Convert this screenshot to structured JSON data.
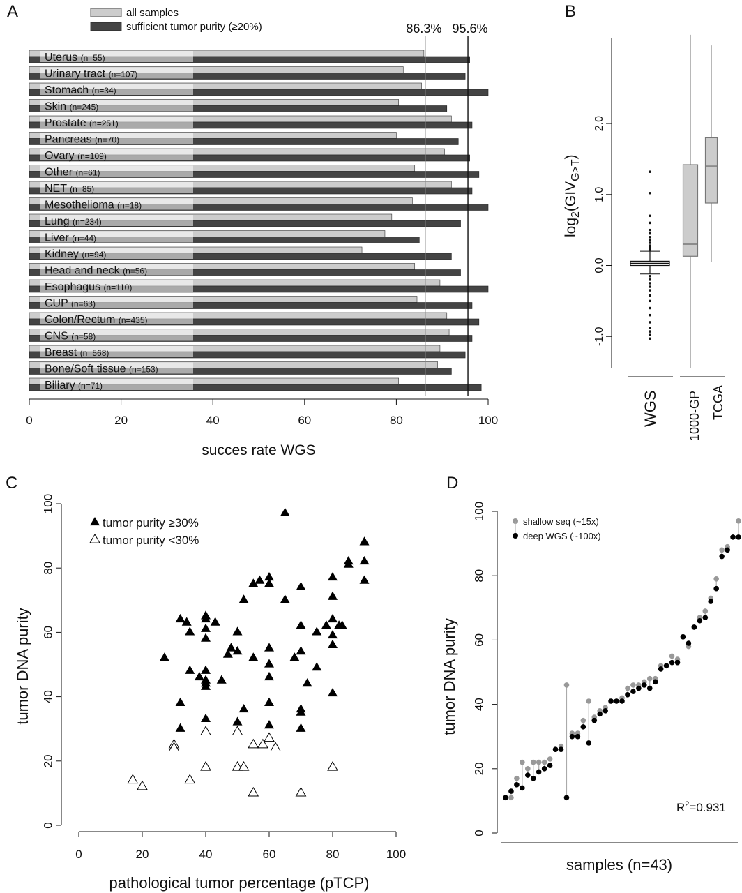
{
  "colors": {
    "all": "#cccccc",
    "sufficient": "#444444",
    "box": "#cccccc",
    "shallow": "#999999",
    "deep": "#000000"
  },
  "panels": {
    "a": "A",
    "b": "B",
    "c": "C",
    "d": "D"
  },
  "chart_data": [
    {
      "type": "bar",
      "panel": "A",
      "categories": [
        {
          "name": "Uterus",
          "n": "(n=55)"
        },
        {
          "name": "Urinary tract",
          "n": "(n=107)"
        },
        {
          "name": "Stomach",
          "n": "(n=34)"
        },
        {
          "name": "Skin",
          "n": "(n=245)"
        },
        {
          "name": "Prostate",
          "n": "(n=251)"
        },
        {
          "name": "Pancreas",
          "n": "(n=70)"
        },
        {
          "name": "Ovary",
          "n": "(n=109)"
        },
        {
          "name": "Other",
          "n": "(n=61)"
        },
        {
          "name": "NET",
          "n": "(n=85)"
        },
        {
          "name": "Mesothelioma",
          "n": "(n=18)"
        },
        {
          "name": "Lung",
          "n": "(n=234)"
        },
        {
          "name": "Liver",
          "n": "(n=44)"
        },
        {
          "name": "Kidney",
          "n": "(n=94)"
        },
        {
          "name": "Head and neck",
          "n": "(n=56)"
        },
        {
          "name": "Esophagus",
          "n": "(n=110)"
        },
        {
          "name": "CUP",
          "n": "(n=63)"
        },
        {
          "name": "Colon/Rectum",
          "n": "(n=435)"
        },
        {
          "name": "CNS",
          "n": "(n=58)"
        },
        {
          "name": "Breast",
          "n": "(n=568)"
        },
        {
          "name": "Bone/Soft tissue",
          "n": "(n=153)"
        },
        {
          "name": "Biliary",
          "n": "(n=71)"
        }
      ],
      "series": [
        {
          "name": "all samples",
          "values": [
            86,
            81.5,
            85.5,
            80.5,
            92,
            80,
            90.5,
            84,
            92,
            83.5,
            79,
            77.5,
            72.5,
            84,
            89.5,
            84.5,
            91,
            91.5,
            89.5,
            89,
            80.5
          ]
        },
        {
          "name": "sufficient tumor purity (≥20%)",
          "values": [
            96,
            95,
            100,
            91,
            96.5,
            93.5,
            96,
            98,
            96.5,
            100,
            94,
            85,
            92,
            94,
            100,
            96.5,
            98,
            96.5,
            95,
            92,
            98.5
          ]
        }
      ],
      "reference_lines": [
        {
          "value": 86.3,
          "label": "86.3%"
        },
        {
          "value": 95.6,
          "label": "95.6%"
        }
      ],
      "xlabel": "succes rate WGS",
      "xlim": [
        0,
        100
      ],
      "xticks": [
        "0",
        "20",
        "40",
        "60",
        "80",
        "100"
      ],
      "legend_position": "top-left"
    },
    {
      "type": "box",
      "panel": "B",
      "ylabel_main": "log",
      "ylabel_sub1": "2",
      "ylabel_mid": "(GIV",
      "ylabel_sub2": "G>T",
      "ylabel_end": ")",
      "ylim": [
        -1.45,
        3.2
      ],
      "yticks": [
        "-1.0",
        "0.0",
        "1.0",
        "2.0"
      ],
      "groups": [
        {
          "name": "WGS",
          "q1": 0.0,
          "median": 0.03,
          "q3": 0.06,
          "whisker_low": -0.12,
          "whisker_high": 0.2,
          "outliers": [
            1.32,
            1.02,
            0.7,
            0.6,
            0.5,
            0.45,
            0.4,
            0.36,
            0.32,
            0.28,
            0.25,
            0.22,
            -0.15,
            -0.2,
            -0.25,
            -0.3,
            -0.35,
            -0.42,
            -0.5,
            -0.6,
            -0.7,
            -0.8,
            -0.88,
            -0.93,
            -0.98,
            -1.03
          ]
        },
        {
          "name": "1000-GP",
          "q1": 0.13,
          "median": 0.3,
          "q3": 1.42,
          "whisker_low": -1.45,
          "whisker_high": 3.25,
          "outliers": []
        },
        {
          "name": "TCGA",
          "q1": 0.88,
          "median": 1.4,
          "q3": 1.8,
          "whisker_low": 0.05,
          "whisker_high": 3.1,
          "outliers": []
        }
      ]
    },
    {
      "type": "scatter",
      "panel": "C",
      "xlabel": "pathological tumor percentage (pTCP)",
      "ylabel": "tumor DNA purity",
      "xlim": [
        0,
        100
      ],
      "ylim": [
        0,
        100
      ],
      "xticks": [
        "0",
        "20",
        "40",
        "60",
        "80",
        "100"
      ],
      "yticks": [
        "0",
        "20",
        "40",
        "60",
        "80",
        "100"
      ],
      "legend_position": "top-left",
      "series": [
        {
          "name": "tumor purity ≥30%",
          "points": [
            [
              27,
              52
            ],
            [
              32,
              64
            ],
            [
              32,
              38
            ],
            [
              32,
              30
            ],
            [
              34,
              63
            ],
            [
              35,
              60
            ],
            [
              35,
              48
            ],
            [
              38,
              46
            ],
            [
              40,
              65
            ],
            [
              40,
              64
            ],
            [
              40,
              61
            ],
            [
              40,
              58
            ],
            [
              40,
              48
            ],
            [
              40,
              45
            ],
            [
              40,
              44
            ],
            [
              40,
              43
            ],
            [
              40,
              33
            ],
            [
              43,
              63
            ],
            [
              45,
              45
            ],
            [
              47,
              53
            ],
            [
              48,
              55
            ],
            [
              50,
              60
            ],
            [
              50,
              54
            ],
            [
              50,
              32
            ],
            [
              52,
              36
            ],
            [
              52,
              70
            ],
            [
              55,
              75
            ],
            [
              55,
              52
            ],
            [
              57,
              76
            ],
            [
              60,
              77
            ],
            [
              60,
              75
            ],
            [
              60,
              55
            ],
            [
              60,
              50
            ],
            [
              60,
              46
            ],
            [
              60,
              38
            ],
            [
              60,
              31
            ],
            [
              65,
              97
            ],
            [
              65,
              70
            ],
            [
              68,
              52
            ],
            [
              70,
              74
            ],
            [
              70,
              62
            ],
            [
              70,
              54
            ],
            [
              70,
              36
            ],
            [
              70,
              35
            ],
            [
              70,
              30
            ],
            [
              72,
              44
            ],
            [
              75,
              60
            ],
            [
              75,
              49
            ],
            [
              78,
              62
            ],
            [
              80,
              77
            ],
            [
              80,
              71
            ],
            [
              80,
              64
            ],
            [
              80,
              59
            ],
            [
              80,
              56
            ],
            [
              80,
              41
            ],
            [
              82,
              62
            ],
            [
              83,
              62
            ],
            [
              85,
              82
            ],
            [
              85,
              81
            ],
            [
              90,
              88
            ],
            [
              90,
              82
            ],
            [
              90,
              76
            ]
          ]
        },
        {
          "name": "tumor purity <30%",
          "points": [
            [
              17,
              14
            ],
            [
              20,
              12
            ],
            [
              30,
              25
            ],
            [
              30,
              24
            ],
            [
              35,
              14
            ],
            [
              40,
              29
            ],
            [
              40,
              18
            ],
            [
              50,
              29
            ],
            [
              50,
              18
            ],
            [
              52,
              18
            ],
            [
              55,
              10
            ],
            [
              55,
              25
            ],
            [
              58,
              25
            ],
            [
              60,
              27
            ],
            [
              62,
              24
            ],
            [
              70,
              10
            ],
            [
              80,
              18
            ]
          ]
        }
      ]
    },
    {
      "type": "scatter",
      "panel": "D",
      "xlabel": "samples (n=43)",
      "ylabel": "tumor DNA purity",
      "ylim": [
        0,
        100
      ],
      "yticks": [
        "0",
        "20",
        "40",
        "60",
        "80",
        "100"
      ],
      "annotation_main": "R",
      "annotation_sup": "2",
      "annotation_end": "=0.931",
      "legend_position": "top-left",
      "series": [
        {
          "name": "shallow seq (~15x)",
          "values": [
            11,
            11,
            17,
            22,
            20,
            22,
            22,
            22,
            23,
            26,
            27,
            46,
            31,
            31,
            35,
            41,
            36,
            38,
            39,
            41,
            41,
            42,
            45,
            46,
            46,
            47,
            48,
            48,
            52,
            52,
            55,
            54,
            61,
            58,
            64,
            67,
            69,
            73,
            79,
            88,
            89,
            92,
            97
          ]
        },
        {
          "name": "deep WGS (~100x)",
          "values": [
            11,
            13,
            15,
            14,
            18,
            17,
            19,
            20,
            21,
            26,
            26,
            11,
            30,
            30,
            33,
            28,
            35,
            37,
            38,
            41,
            41,
            41,
            43,
            44,
            45,
            46,
            45,
            47,
            51,
            52,
            53,
            53,
            61,
            59,
            64,
            66,
            67,
            72,
            76,
            86,
            88,
            92,
            92
          ]
        }
      ]
    }
  ]
}
